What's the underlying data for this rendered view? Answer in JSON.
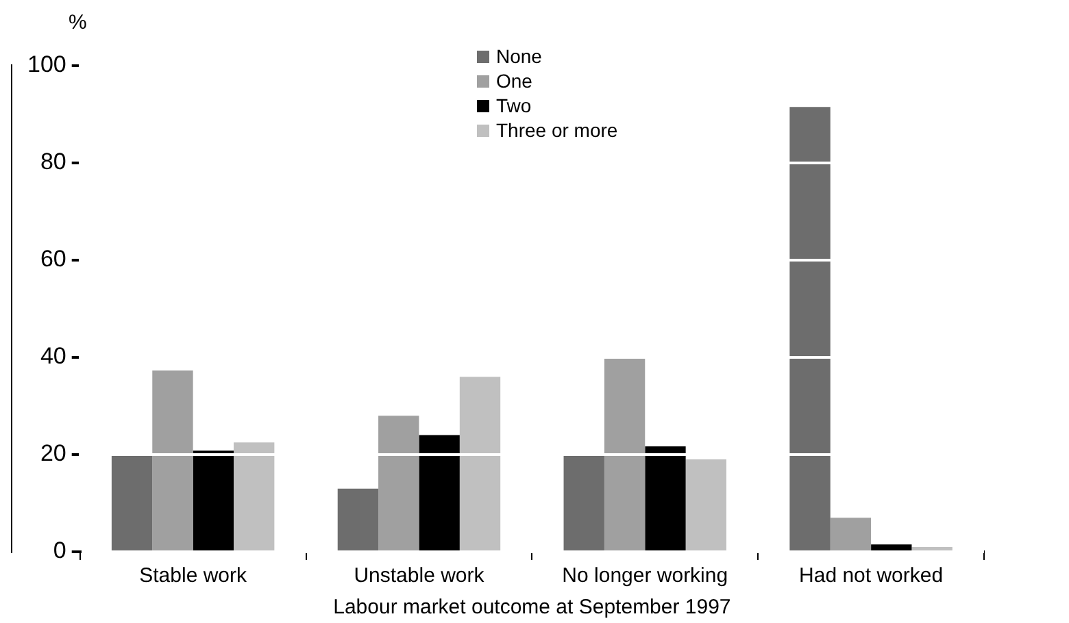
{
  "chart_data": {
    "type": "bar",
    "ylabel": "%",
    "xlabel": "Labour market outcome at September 1997",
    "categories": [
      "Stable work",
      "Unstable work",
      "No longer working",
      "Had not worked"
    ],
    "series": [
      {
        "name": "None",
        "color": "#6d6d6d",
        "values": [
          20,
          13,
          20,
          91.5
        ]
      },
      {
        "name": "One",
        "color": "#a0a0a0",
        "values": [
          37.3,
          28,
          39.8,
          7
        ]
      },
      {
        "name": "Two",
        "color": "#000000",
        "values": [
          20.8,
          24,
          21.7,
          1.5
        ]
      },
      {
        "name": "Three or more",
        "color": "#c0c0c0",
        "values": [
          22.5,
          36,
          19,
          1
        ]
      }
    ],
    "ylim": [
      0,
      100
    ],
    "yticks": [
      0,
      20,
      40,
      60,
      80,
      100
    ],
    "grid": "y",
    "legend": "top"
  }
}
